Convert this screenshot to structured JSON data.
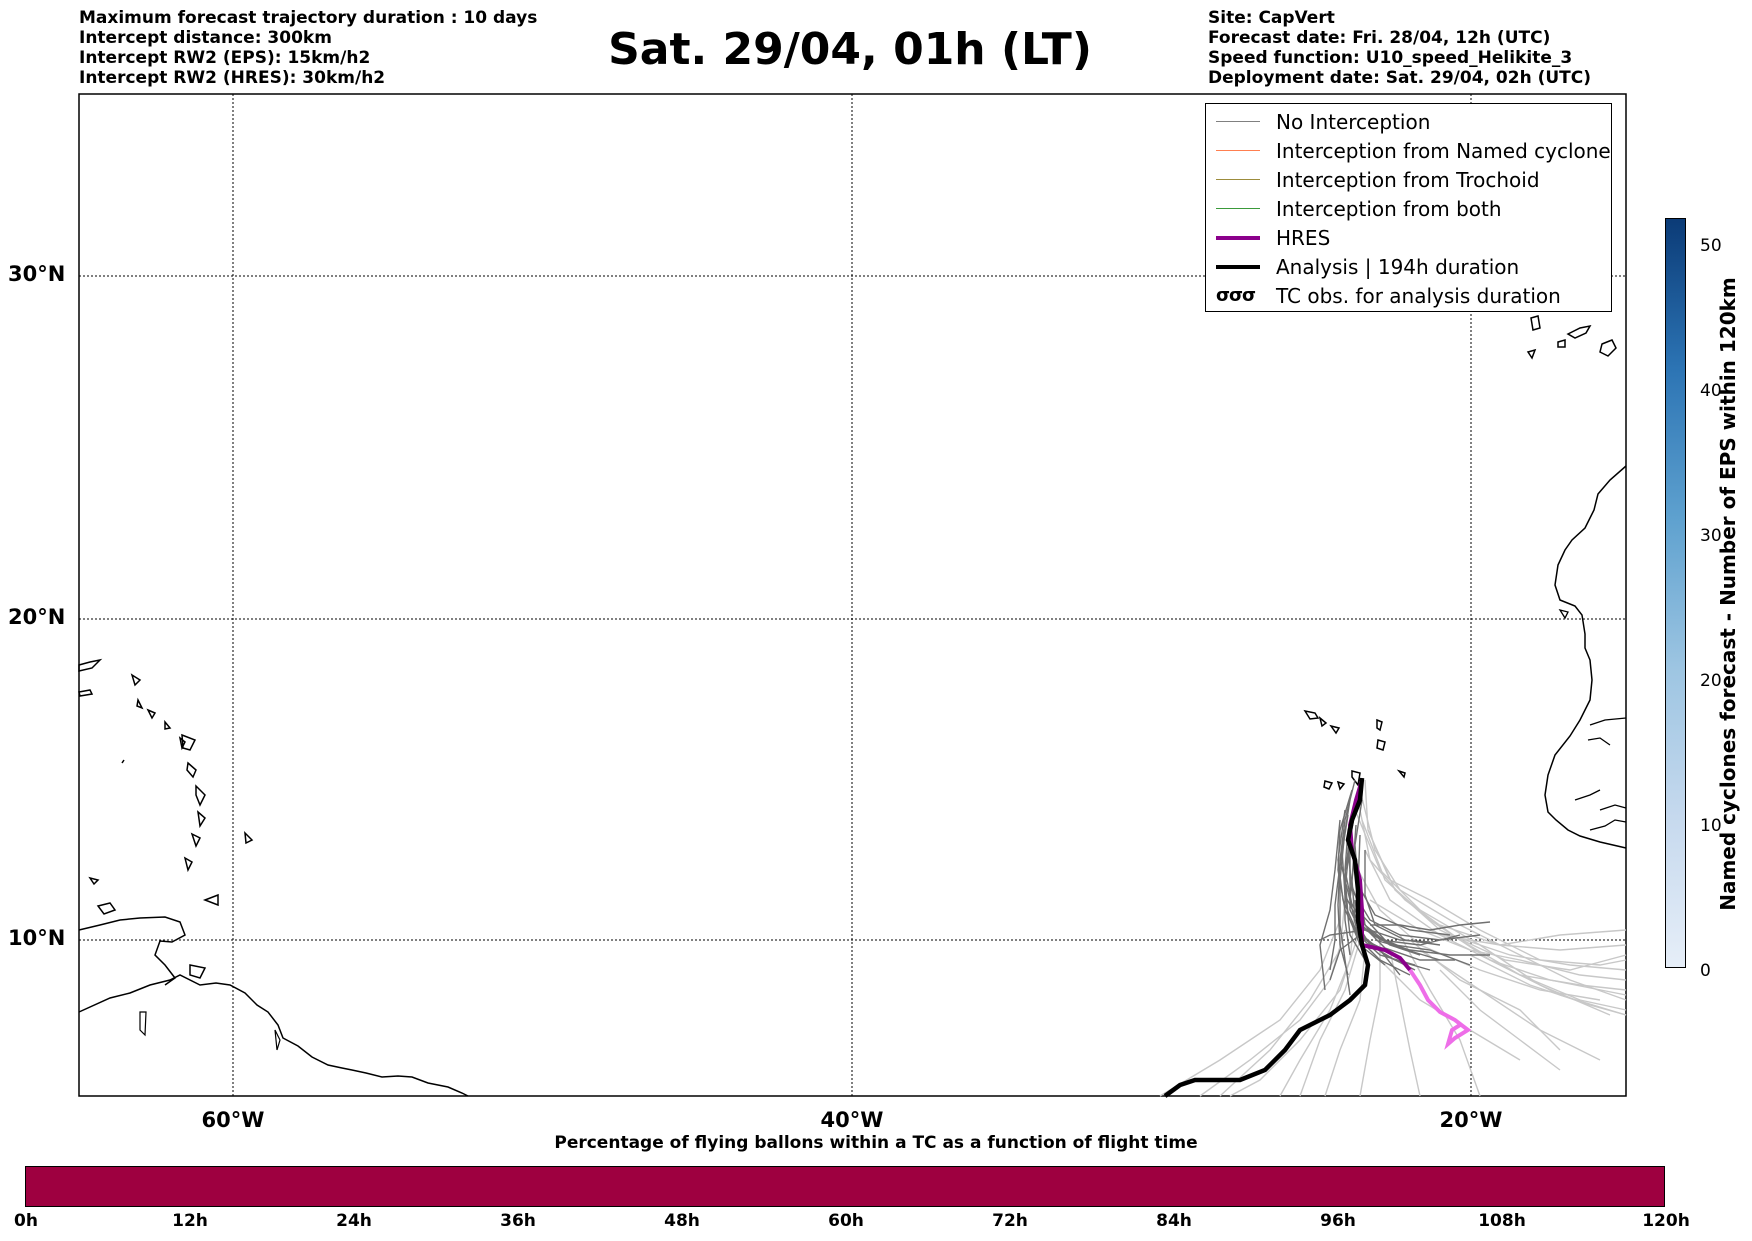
{
  "header_left": [
    "Maximum forecast trajectory duration : 10 days",
    "Intercept distance: 300km",
    "Intercept RW2 (EPS):  15km/h2",
    "Intercept RW2 (HRES): 30km/h2"
  ],
  "title": "Sat. 29/04, 01h (LT)",
  "header_right": [
    "Site: CapVert",
    "Forecast date: Fri. 28/04, 12h (UTC)",
    "Speed function: U10_speed_Helikite_3",
    "Deployment date: Sat. 29/04, 02h (UTC)"
  ],
  "map": {
    "lat_labels": [
      "30°N",
      "20°N",
      "10°N"
    ],
    "lon_labels": [
      "60°W",
      "40°W",
      "20°W"
    ]
  },
  "legend": [
    {
      "label": "No Interception",
      "color": "#808080",
      "style": "thin"
    },
    {
      "label": "Interception from Named cyclone",
      "color": "#ff7f50",
      "style": "thin"
    },
    {
      "label": "Interception from Trochoid",
      "color": "#9c8c3c",
      "style": "thin"
    },
    {
      "label": "Interception from both",
      "color": "#3a9a3a",
      "style": "thin"
    },
    {
      "label": "HRES",
      "color": "#8b008b",
      "style": "thick"
    },
    {
      "label": "Analysis | 194h duration",
      "color": "#000000",
      "style": "thick"
    },
    {
      "label": "TC obs. for analysis duration",
      "color": "#000000",
      "style": "symbol",
      "symbol": "σσσ"
    }
  ],
  "colorbar_right": {
    "label": "Named cyclones forecast - Number of EPS within 120km",
    "ticks": [
      "50",
      "40",
      "30",
      "20",
      "10",
      "0"
    ],
    "colors": {
      "low": "#e6eef8",
      "high": "#0b3b77"
    }
  },
  "colorbar_bottom": {
    "title": "Percentage of flying ballons within a TC as a function of flight time",
    "ticks": [
      "0h",
      "12h",
      "24h",
      "36h",
      "48h",
      "60h",
      "72h",
      "84h",
      "96h",
      "108h",
      "120h"
    ],
    "color": "#9e0040"
  }
}
